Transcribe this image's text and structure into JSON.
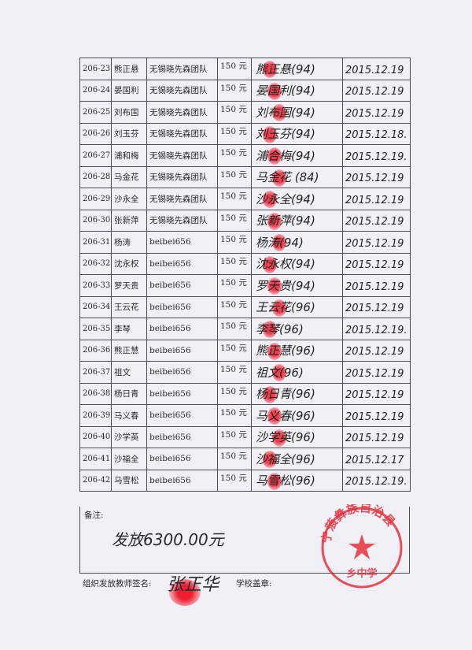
{
  "rows": [
    {
      "id": "206-23",
      "name": "熊正悬",
      "team": "无锡晓先森团队",
      "amount": "150 元",
      "signature": "熊正悬(94)",
      "date": "2015.12.19"
    },
    {
      "id": "206-24",
      "name": "晏国利",
      "team": "无锡晓先森团队",
      "amount": "150 元",
      "signature": "晏国利(94)",
      "date": "2015.12.19"
    },
    {
      "id": "206-25",
      "name": "刘布国",
      "team": "无锡晓先森团队",
      "amount": "150 元",
      "signature": "刘布国(94)",
      "date": "2015.12.19"
    },
    {
      "id": "206-26",
      "name": "刘玉芬",
      "team": "无锡晓先森团队",
      "amount": "150 元",
      "signature": "刘玉芬(94)",
      "date": "2015.12.18."
    },
    {
      "id": "206-27",
      "name": "浦和梅",
      "team": "无锡晓先森团队",
      "amount": "150 元",
      "signature": "浦合梅(94)",
      "date": "2015.12.19."
    },
    {
      "id": "206-28",
      "name": "马金花",
      "team": "无锡晓先森团队",
      "amount": "150 元",
      "signature": "马金花 (84)",
      "date": "2015.12.19"
    },
    {
      "id": "206-29",
      "name": "沙永全",
      "team": "无锡晓先森团队",
      "amount": "150 元",
      "signature": "沙永全(94)",
      "date": "2015.12.19"
    },
    {
      "id": "206-30",
      "name": "张新萍",
      "team": "无锡晓先森团队",
      "amount": "150 元",
      "signature": "张新萍(94)",
      "date": "2015.12.19"
    },
    {
      "id": "206-31",
      "name": "杨涛",
      "team": "beibei656",
      "amount": "150 元",
      "signature": "杨涛(94)",
      "date": "2015.12.19"
    },
    {
      "id": "206-32",
      "name": "沈永权",
      "team": "beibei656",
      "amount": "150 元",
      "signature": "沈永权(94)",
      "date": "2015.12.19"
    },
    {
      "id": "206-33",
      "name": "罗天贵",
      "team": "beibei656",
      "amount": "150 元",
      "signature": "罗天贵(94)",
      "date": "2015.12.19"
    },
    {
      "id": "206-34",
      "name": "王云花",
      "team": "beibei656",
      "amount": "150 元",
      "signature": "王云花(96)",
      "date": "2015.12.19"
    },
    {
      "id": "206-35",
      "name": "李琴",
      "team": "beibei656",
      "amount": "150 元",
      "signature": "李琴(96)",
      "date": "2015.12.19."
    },
    {
      "id": "206-36",
      "name": "熊正慧",
      "team": "beibei656",
      "amount": "150 元",
      "signature": "熊正慧(96)",
      "date": "2015.12.19"
    },
    {
      "id": "206-37",
      "name": "祖文",
      "team": "beibei656",
      "amount": "150 元",
      "signature": "祖文(96)",
      "date": "2015.12.19"
    },
    {
      "id": "206-38",
      "name": "杨日青",
      "team": "beibei656",
      "amount": "150 元",
      "signature": "杨日青(96)",
      "date": "2015.12.19"
    },
    {
      "id": "206-39",
      "name": "马义春",
      "team": "beibei656",
      "amount": "150 元",
      "signature": "马义春(96)",
      "date": "2015.12.19"
    },
    {
      "id": "206-40",
      "name": "沙学英",
      "team": "beibei656",
      "amount": "150 元",
      "signature": "沙学英(96)",
      "date": "2015.12.19"
    },
    {
      "id": "206-41",
      "name": "沙福全",
      "team": "beibei656",
      "amount": "150 元",
      "signature": "沙福全(96)",
      "date": "2015.12.17"
    },
    {
      "id": "206-42",
      "name": "马雪松",
      "team": "beibei656",
      "amount": "150 元",
      "signature": "马雪松(96)",
      "date": "2015.12.19."
    }
  ],
  "notes": {
    "label": "备注:",
    "handwritten": "发放6300.00元"
  },
  "footer": {
    "teacher_label": "组织发放教师签名:",
    "teacher_signature": "张正华",
    "school_label": "学校盖章:"
  },
  "stamp": {
    "text": "宁蒗彝族自治县 乡中学",
    "color": "#e8303c"
  }
}
